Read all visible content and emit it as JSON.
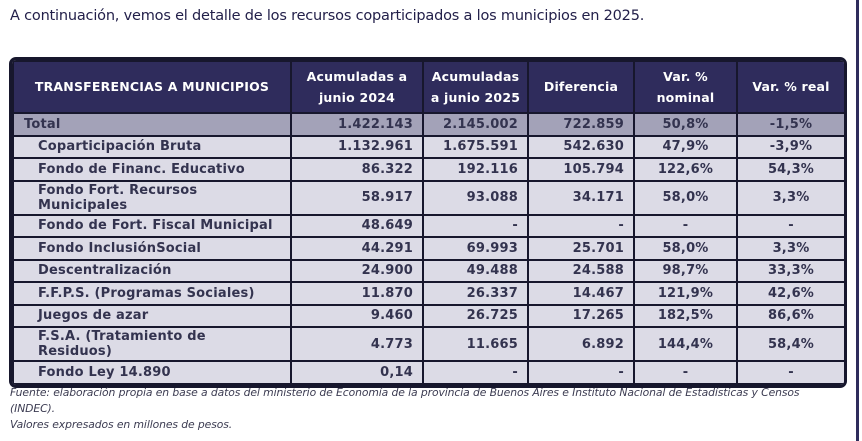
{
  "intro": "A continuación, vemos el detalle de los recursos coparticipados a los municipios en 2025.",
  "table": {
    "headers": [
      "TRANSFERENCIAS A MUNICIPIOS",
      "Acumuladas a junio 2024",
      "Acumuladas a junio 2025",
      "Diferencia",
      "Var. % nominal",
      "Var. % real"
    ],
    "rows": [
      {
        "label": "Total",
        "is_total": true,
        "values": [
          "1.422.143",
          "2.145.002",
          "722.859",
          "50,8%",
          "-1,5%"
        ]
      },
      {
        "label": "Coparticipación Bruta",
        "is_total": false,
        "values": [
          "1.132.961",
          "1.675.591",
          "542.630",
          "47,9%",
          "-3,9%"
        ]
      },
      {
        "label": "Fondo de Financ. Educativo",
        "is_total": false,
        "values": [
          "86.322",
          "192.116",
          "105.794",
          "122,6%",
          "54,3%"
        ]
      },
      {
        "label": "Fondo Fort. Recursos Municipales",
        "is_total": false,
        "values": [
          "58.917",
          "93.088",
          "34.171",
          "58,0%",
          "3,3%"
        ]
      },
      {
        "label": "Fondo de Fort. Fiscal Municipal",
        "is_total": false,
        "values": [
          "48.649",
          "-",
          "-",
          "-",
          "-"
        ]
      },
      {
        "label": "Fondo InclusiónSocial",
        "is_total": false,
        "values": [
          "44.291",
          "69.993",
          "25.701",
          "58,0%",
          "3,3%"
        ]
      },
      {
        "label": "Descentralización",
        "is_total": false,
        "values": [
          "24.900",
          "49.488",
          "24.588",
          "98,7%",
          "33,3%"
        ]
      },
      {
        "label": "F.F.P.S. (Programas Sociales)",
        "is_total": false,
        "values": [
          "11.870",
          "26.337",
          "14.467",
          "121,9%",
          "42,6%"
        ]
      },
      {
        "label": "Juegos de azar",
        "is_total": false,
        "values": [
          "9.460",
          "26.725",
          "17.265",
          "182,5%",
          "86,6%"
        ]
      },
      {
        "label": "F.S.A. (Tratamiento de Residuos)",
        "is_total": false,
        "values": [
          "4.773",
          "11.665",
          "6.892",
          "144,4%",
          "58,4%"
        ]
      },
      {
        "label": "Fondo Ley 14.890",
        "is_total": false,
        "values": [
          "0,14",
          "-",
          "-",
          "-",
          "-"
        ]
      }
    ]
  },
  "footnote": {
    "line1": "Fuente: elaboración propia en base a datos del ministerio de Economía de la provincia de Buenos Aires e Instituto Nacional de Estadísticas y Censos (INDEC).",
    "line2": "Valores expresados en millones de pesos."
  },
  "colors": {
    "header_bg": "#2f2c5c",
    "total_row_bg": "#a3a2b8",
    "data_row_bg": "#dcdbe6",
    "border": "#17172d",
    "cell_text": "#33334f",
    "title_text": "#23204a",
    "footnote_text": "#3c3c52"
  }
}
